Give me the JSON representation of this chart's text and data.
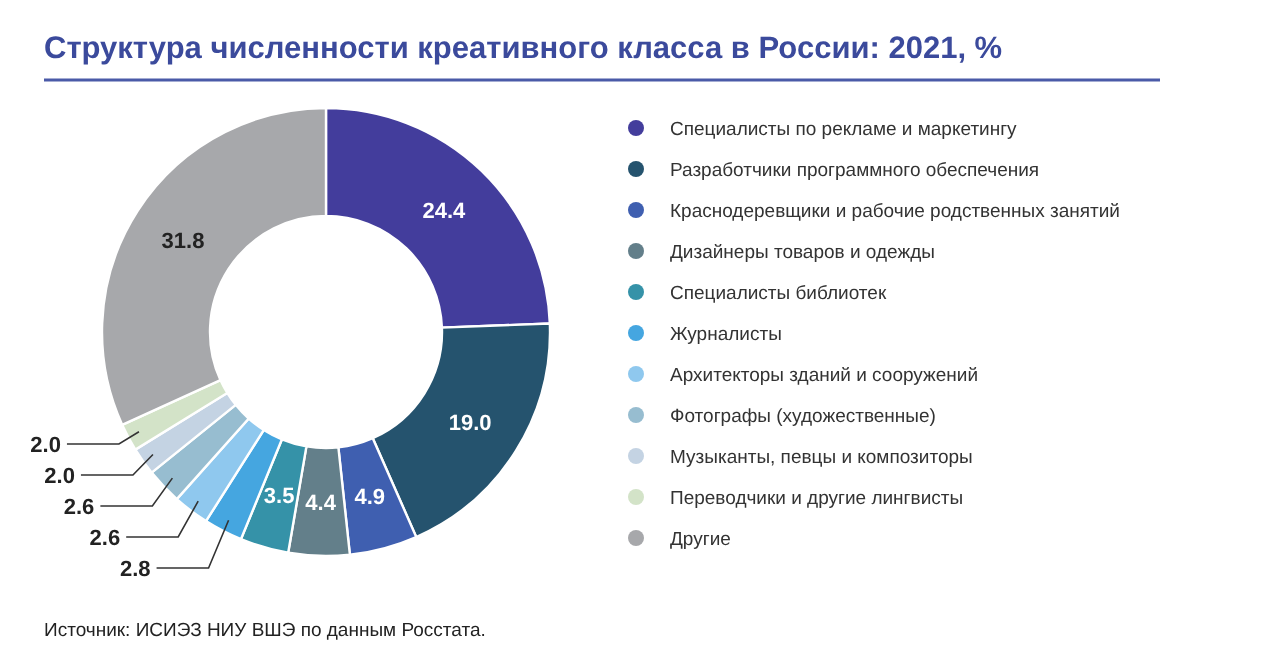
{
  "chart_data": {
    "type": "donut",
    "title": "Структура численности креативного класса в России: 2021, %",
    "categories": [
      "Специалисты по рекламе и маркетингу",
      "Разработчики программного обеспечения",
      "Краснодеревщики и рабочие родственных занятий",
      "Дизайнеры товаров и одежды",
      "Специалисты библиотек",
      "Журналисты",
      "Архитекторы зданий и сооружений",
      "Фотографы (художественные)",
      "Музыканты, певцы и композиторы",
      "Переводчики и другие лингвисты",
      "Другие"
    ],
    "values": [
      24.4,
      19.0,
      4.9,
      4.4,
      3.5,
      2.8,
      2.6,
      2.6,
      2.0,
      2.0,
      31.8
    ],
    "value_labels": [
      "24.4",
      "19.0",
      "4.9",
      "4.4",
      "3.5",
      "2.8",
      "2.6",
      "2.6",
      "2.0",
      "2.0",
      "31.8"
    ],
    "colors": [
      "#433d9c",
      "#25536e",
      "#3f5fb0",
      "#637f8a",
      "#3592a8",
      "#45a6e0",
      "#8fc8ee",
      "#97bdd0",
      "#c4d3e3",
      "#d3e3c8",
      "#a7a8ab"
    ],
    "legend": "right",
    "annotations": [
      "Источник: ИСИЭЗ НИУ ВШЭ по данным Росстата."
    ]
  }
}
